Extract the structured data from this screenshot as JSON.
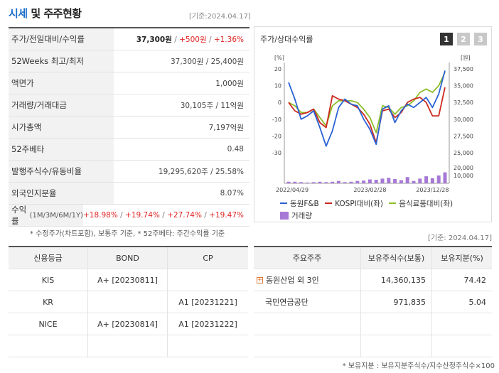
{
  "header": {
    "title_accent": "시세",
    "title_rest": "및 주주현황",
    "date": "[기준:2024.04.17]"
  },
  "quote_table": {
    "rows": [
      {
        "label": "주가/전일대비/수익률",
        "value_main": "37,300원",
        "sep1": " / ",
        "value_change": "+500원",
        "sep2": " / ",
        "value_pct": "+1.36%"
      },
      {
        "label": "52Weeks 최고/최저",
        "value": "37,300원 / 25,400원"
      },
      {
        "label": "액면가",
        "value": "1,000원"
      },
      {
        "label": "거래량/거래대금",
        "value": "30,105주 / 11억원"
      },
      {
        "label": "시가총액",
        "value": "7,197억원"
      },
      {
        "label": "52주베타",
        "value": "0.48"
      },
      {
        "label": "발행주식수/유동비율",
        "value": "19,295,620주 / 25.58%"
      },
      {
        "label": "외국인지분율",
        "value": "8.07%"
      },
      {
        "label": "수익률",
        "label_small": "(1M/3M/6M/1Y)",
        "r1": "+18.98%",
        "r2": "+19.74%",
        "r3": "+27.74%",
        "r4": "+19.47%",
        "sep": " / "
      }
    ],
    "note": "* 수정주가(차트포함), 보통주 기준, * 52주베타: 주간수익률 기준"
  },
  "chart_panel": {
    "title": "주가/상대수익률",
    "tabs": [
      "1",
      "2",
      "3"
    ],
    "active_tab": 0,
    "legend": {
      "s1": "동원F&B",
      "s2": "KOSPI대비(좌)",
      "s3": "음식료품대비(좌)",
      "s4": "거래량"
    }
  },
  "chart_data": {
    "type": "line",
    "left_axis_unit": "[%]",
    "right_axis_unit": "[원]",
    "left_ticks": [
      "20",
      "10",
      "0",
      "-10",
      "-20",
      "-30"
    ],
    "right_ticks": [
      "37,500",
      "35,000",
      "32,500",
      "30,000",
      "27,500",
      "25,000"
    ],
    "volume_ticks": [
      "20,000",
      "10,000"
    ],
    "x_labels": [
      "2022/04/29",
      "2023/02/28",
      "2023/12/28"
    ],
    "left_ylim": [
      -30,
      20
    ],
    "right_ylim": [
      25000,
      37500
    ],
    "colors": {
      "s1": "#2a62d4",
      "s2": "#cc2a1e",
      "s3": "#8cbf2a",
      "volume": "#a779d6"
    },
    "series": [
      {
        "name": "동원F&B",
        "values": [
          12,
          2,
          -10,
          -8,
          -5,
          -15,
          -26,
          -17,
          -3,
          2,
          -1,
          -2,
          -10,
          -16,
          -25,
          -4,
          -2,
          -12,
          -5,
          -1,
          -3,
          0,
          3,
          -3,
          5,
          19
        ]
      },
      {
        "name": "KOSPI대비(좌)",
        "values": [
          0,
          -5,
          -7,
          -6,
          -4,
          -12,
          -15,
          4,
          2,
          1,
          -1,
          -3,
          -7,
          -13,
          -24,
          -5,
          -4,
          -9,
          -6,
          0,
          2,
          3,
          0,
          -8,
          -8,
          9
        ]
      },
      {
        "name": "음식료품대비(좌)",
        "values": [
          0,
          -2,
          -6,
          -6,
          -4,
          -9,
          -14,
          -2,
          1,
          1,
          1,
          0,
          -4,
          -9,
          -18,
          -2,
          -3,
          -7,
          -3,
          -2,
          1,
          6,
          8,
          6,
          10,
          18
        ]
      },
      {
        "name": "거래량",
        "values": [
          2000,
          2000,
          1500,
          1000,
          1500,
          2000,
          1500,
          2000,
          3000,
          1500,
          2000,
          3000,
          3500,
          5000,
          4500,
          6000,
          7000,
          5500,
          4000,
          8000,
          3000,
          6000,
          9000,
          6500,
          10000,
          14000
        ]
      }
    ]
  },
  "mid_date": "[기준: 2024.04.17]",
  "credit_table": {
    "headers": [
      "신용등급",
      "BOND",
      "CP"
    ],
    "rows": [
      [
        "KIS",
        "A+ [20230811]",
        ""
      ],
      [
        "KR",
        "",
        "A1 [20231221]"
      ],
      [
        "NICE",
        "A+ [20230814]",
        "A1 [20231222]"
      ],
      [
        "",
        "",
        ""
      ]
    ]
  },
  "shareholders_table": {
    "headers": [
      "주요주주",
      "보유주식수(보통)",
      "보유지분(%)"
    ],
    "rows": [
      {
        "name": "동원산업 외 3인",
        "shares": "14,360,135",
        "pct": "74.42",
        "expand": "+"
      },
      {
        "name": "국민연금공단",
        "shares": "971,835",
        "pct": "5.04",
        "expand": ""
      },
      {
        "name": "",
        "shares": "",
        "pct": "",
        "expand": ""
      },
      {
        "name": "",
        "shares": "",
        "pct": "",
        "expand": ""
      }
    ],
    "note": "* 보유지분 : 보유지분주식수/지수산정주식수×100"
  }
}
